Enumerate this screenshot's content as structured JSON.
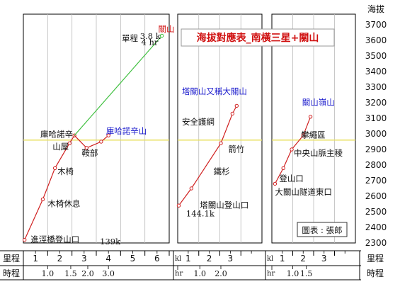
{
  "chart_data": {
    "type": "line",
    "title": "海拔對應表_南橫三星+關山",
    "y_axis": {
      "label": "海拔",
      "ylim": [
        2300,
        3700
      ],
      "ticks": [
        2300,
        2400,
        2500,
        2600,
        2700,
        2800,
        2900,
        3000,
        3100,
        3200,
        3300,
        3400,
        3500,
        3600,
        3700
      ]
    },
    "reference_line": 2960,
    "bottom_row_labels": {
      "distance": "里程",
      "time": "時程"
    },
    "panels": [
      {
        "x_range": [
          0,
          6
        ],
        "distance_ticks": [
          "1",
          "2",
          "3",
          "4",
          "5",
          "6"
        ],
        "distance_unit": "k",
        "time_unit": "",
        "time_labels": [
          {
            "x": 1.0,
            "text": "1.0"
          },
          {
            "x": 1.95,
            "text": "1.5"
          },
          {
            "x": 2.65,
            "text": "2.0"
          },
          {
            "x": 3.5,
            "text": "3.0"
          }
        ],
        "series": [
          {
            "segments": [
              {
                "color": "#d02020",
                "points": [
                  [
                    0.05,
                    2320
                  ],
                  [
                    0.8,
                    2580
                  ],
                  [
                    1.3,
                    2780
                  ],
                  [
                    1.9,
                    2940
                  ],
                  [
                    2.1,
                    2990
                  ]
                ],
                "dots": [
                  0,
                  1,
                  2,
                  3,
                  4
                ]
              },
              {
                "color": "#d02020",
                "points": [
                  [
                    2.1,
                    2990
                  ],
                  [
                    2.6,
                    2910
                  ],
                  [
                    3.2,
                    2950
                  ],
                  [
                    3.5,
                    2990
                  ]
                ],
                "dots": [
                  1,
                  2,
                  3
                ]
              },
              {
                "color": "#40c040",
                "points": [
                  [
                    2.1,
                    2990
                  ],
                  [
                    5.7,
                    3630
                  ]
                ],
                "dots": [
                  1
                ]
              }
            ]
          }
        ],
        "labels": [
          {
            "text": "關山",
            "x": 5.55,
            "y": 3655,
            "color": "red"
          },
          {
            "text": "單程",
            "x": 4.05,
            "y": 3595,
            "color": "black"
          },
          {
            "text": "3.8 k",
            "x": 4.8,
            "y": 3610,
            "color": "black",
            "serif": true,
            "size": 10
          },
          {
            "text": "4 hr",
            "x": 4.85,
            "y": 3570,
            "color": "black",
            "serif": true,
            "size": 10
          },
          {
            "text": "庫哈諾辛山",
            "x": 3.4,
            "y": 3000,
            "color": "blue"
          },
          {
            "text": "庫哈諾辛",
            "x": 0.7,
            "y": 2980,
            "color": "black"
          },
          {
            "text": "山屋",
            "x": 1.2,
            "y": 2900,
            "color": "black"
          },
          {
            "text": "鞍部",
            "x": 2.4,
            "y": 2860,
            "color": "black"
          },
          {
            "text": "木椅",
            "x": 1.4,
            "y": 2740,
            "color": "black"
          },
          {
            "text": "木椅休息",
            "x": 1.0,
            "y": 2535,
            "color": "black"
          },
          {
            "text": "進涇橋登山口",
            "x": 0.3,
            "y": 2305,
            "color": "black"
          },
          {
            "text": "139k",
            "x": 3.15,
            "y": 2290,
            "color": "black",
            "serif": true,
            "size": 10
          }
        ]
      },
      {
        "x_range": [
          0,
          4
        ],
        "distance_ticks": [
          "1",
          "2",
          "3"
        ],
        "distance_unit": "kl",
        "time_unit": "hr",
        "time_labels": [
          {
            "x": 1.05,
            "text": "1.0"
          },
          {
            "x": 2.05,
            "text": "2.0"
          }
        ],
        "series": [
          {
            "segments": [
              {
                "color": "#d02020",
                "points": [
                  [
                    0.05,
                    2540
                  ],
                  [
                    0.65,
                    2650
                  ],
                  [
                    2.05,
                    2940
                  ],
                  [
                    2.6,
                    3130
                  ],
                  [
                    2.8,
                    3180
                  ]
                ],
                "dots": [
                  0,
                  1,
                  2,
                  3,
                  4
                ]
              }
            ]
          }
        ],
        "labels": [
          {
            "text": "塔關山又稱大關山",
            "x": 0.2,
            "y": 3255,
            "color": "blue"
          },
          {
            "text": "安全護網",
            "x": 0.2,
            "y": 3060,
            "color": "black"
          },
          {
            "text": "箭竹",
            "x": 2.4,
            "y": 2885,
            "color": "black"
          },
          {
            "text": "鐵杉",
            "x": 1.7,
            "y": 2740,
            "color": "black"
          },
          {
            "text": "塔關山登山口",
            "x": 1.05,
            "y": 2525,
            "color": "black"
          },
          {
            "text": "144.1k",
            "x": 0.4,
            "y": 2470,
            "color": "black",
            "serif": true,
            "size": 10
          }
        ]
      },
      {
        "x_range": [
          0,
          4
        ],
        "distance_ticks": [
          "1",
          "2",
          "3"
        ],
        "distance_unit": "kl",
        "time_unit": "hr",
        "time_labels": [
          {
            "x": 1.0,
            "text": "1.0"
          },
          {
            "x": 1.65,
            "text": "1.5"
          }
        ],
        "series": [
          {
            "segments": [
              {
                "color": "#d02020",
                "points": [
                  [
                    0.15,
                    2680
                  ],
                  [
                    0.55,
                    2780
                  ],
                  [
                    0.95,
                    2900
                  ],
                  [
                    1.5,
                    2990
                  ],
                  [
                    1.85,
                    3110
                  ]
                ],
                "dots": [
                  0,
                  1,
                  2,
                  3,
                  4
                ]
              }
            ]
          }
        ],
        "labels": [
          {
            "text": "關山嶺山",
            "x": 1.45,
            "y": 3185,
            "color": "blue"
          },
          {
            "text": "攀繩區",
            "x": 1.4,
            "y": 2975,
            "color": "black"
          },
          {
            "text": "中央山脈主稜",
            "x": 1.05,
            "y": 2860,
            "color": "black"
          },
          {
            "text": "登山口",
            "x": 0.35,
            "y": 2695,
            "color": "black"
          },
          {
            "text": "大關山隧道東口",
            "x": 0.15,
            "y": 2610,
            "color": "black"
          }
        ]
      }
    ],
    "credit": "圖表 : 張郎"
  }
}
